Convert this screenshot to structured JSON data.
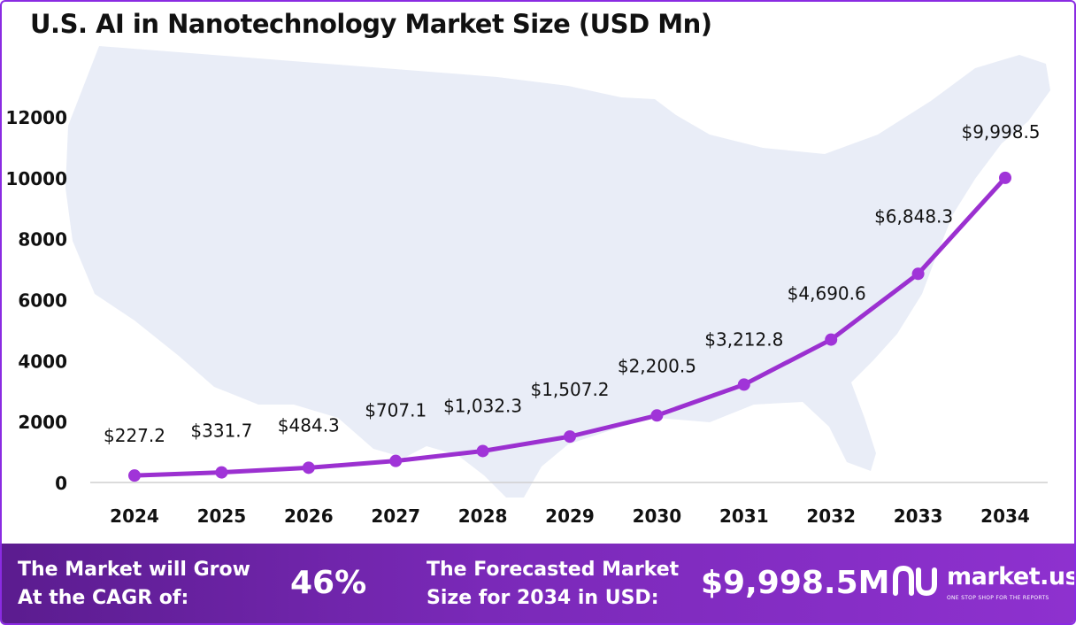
{
  "title": "U.S. AI in Nanotechnology Market Size (USD Mn)",
  "colors": {
    "line": "#9b30d0",
    "marker": "#a034d8",
    "axis": "#cfcfcf",
    "map": "#e9edf7",
    "footer": "#7a29b8"
  },
  "chart_data": {
    "type": "line",
    "title": "U.S. AI in Nanotechnology Market Size (USD Mn)",
    "xlabel": "",
    "ylabel": "",
    "categories": [
      "2024",
      "2025",
      "2026",
      "2027",
      "2028",
      "2029",
      "2030",
      "2031",
      "2032",
      "2033",
      "2034"
    ],
    "values": [
      227.2,
      331.7,
      484.3,
      707.1,
      1032.3,
      1507.2,
      2200.5,
      3212.8,
      4690.6,
      6848.3,
      9998.5
    ],
    "data_labels": [
      "$227.2",
      "$331.7",
      "$484.3",
      "$707.1",
      "$1,032.3",
      "$1,507.2",
      "$2,200.5",
      "$3,212.8",
      "$4,690.6",
      "$6,848.3",
      "$9,998.5"
    ],
    "yticks": [
      "0",
      "2000",
      "4000",
      "6000",
      "8000",
      "10000",
      "12000"
    ],
    "ylim": [
      0,
      12000
    ],
    "grid": false,
    "legend": "none"
  },
  "footer": {
    "cagr_line1": "The Market will Grow",
    "cagr_line2": "At the CAGR of:",
    "cagr_value": "46%",
    "forecast_line1": "The Forecasted Market",
    "forecast_line2": "Size for 2034 in USD:",
    "forecast_value": "$9,998.5M",
    "brand": "market.us",
    "tagline": "ONE STOP SHOP FOR THE REPORTS",
    "logo_icon": "market-us-logo-icon"
  }
}
